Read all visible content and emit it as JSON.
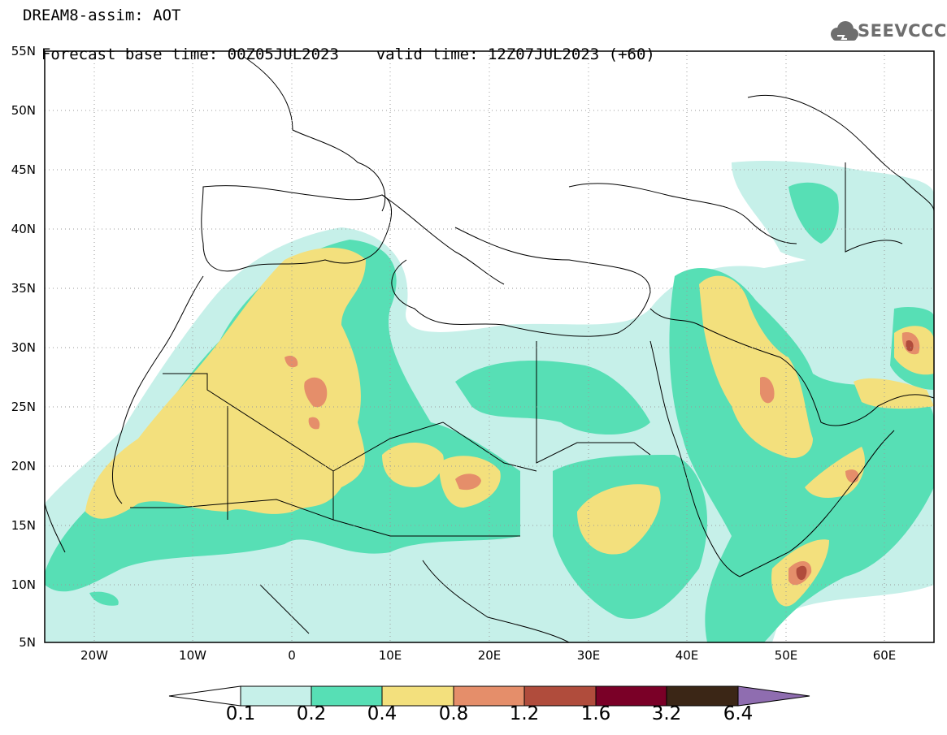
{
  "header": {
    "title": "DREAM8-assim: AOT",
    "base_time": "Forecast base time: 00Z05JUL2023",
    "valid_time": "valid time: 12Z07JUL2023 (+60)"
  },
  "logo": {
    "text": "SEEVCCC",
    "icon": "cloud-icon"
  },
  "map": {
    "lat_labels": [
      "55N",
      "50N",
      "45N",
      "40N",
      "35N",
      "30N",
      "25N",
      "20N",
      "15N",
      "10N",
      "5N"
    ],
    "lon_labels": [
      "20W",
      "10W",
      "0",
      "10E",
      "20E",
      "30E",
      "40E",
      "50E",
      "60E"
    ],
    "extent": {
      "lon_min": -25,
      "lon_max": 65,
      "lat_min": 5,
      "lat_max": 55
    },
    "grid": "dotted",
    "colors": {
      "level_0_1": "#c6f0e9",
      "level_0_2": "#57dfb5",
      "level_0_4": "#f3e07d",
      "level_0_8": "#e58e6a",
      "level_1_2": "#b04c3c",
      "level_1_6": "#7a0027",
      "level_3_2": "#3b2616",
      "level_6_4": "#8f6db0"
    }
  },
  "colorbar": {
    "labels": [
      "0.1",
      "0.2",
      "0.4",
      "0.8",
      "1.2",
      "1.6",
      "3.2",
      "6.4"
    ],
    "colors": [
      "#c6f0e9",
      "#57dfb5",
      "#f3e07d",
      "#e58e6a",
      "#b04c3c",
      "#7a0027",
      "#3b2616"
    ],
    "extend_low_color": "#ffffff",
    "extend_high_color": "#8f6db0"
  }
}
